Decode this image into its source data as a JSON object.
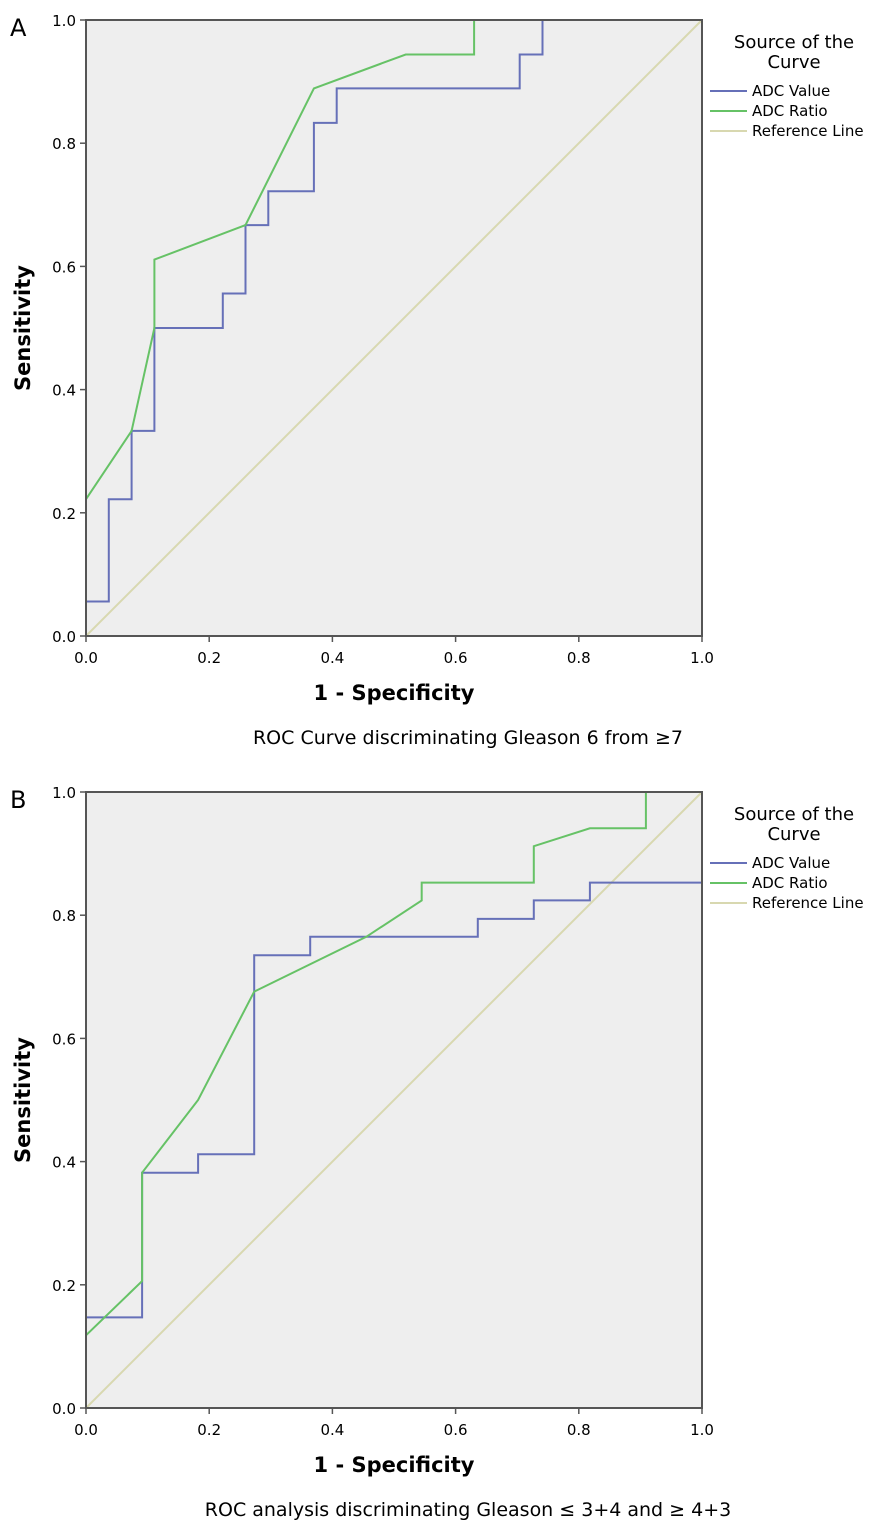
{
  "chart_data": [
    {
      "type": "line",
      "panel_letter": "A",
      "xlabel": "1 - Specificity",
      "ylabel": "Sensitivity",
      "caption": "ROC Curve discriminating Gleason 6 from ≥7",
      "xlim": [
        0,
        1
      ],
      "ylim": [
        0,
        1
      ],
      "x_ticks": [
        "0.0",
        "0.2",
        "0.4",
        "0.6",
        "0.8",
        "1.0"
      ],
      "y_ticks": [
        "0.0",
        "0.2",
        "0.4",
        "0.6",
        "0.8",
        "1.0"
      ],
      "grid": false,
      "legend": {
        "title_line1": "Source of the",
        "title_line2": "Curve",
        "placement": "right"
      },
      "series": [
        {
          "name": "ADC Value",
          "color": "#6670b8",
          "points": [
            [
              0,
              0
            ],
            [
              0,
              0.056
            ],
            [
              0.037,
              0.056
            ],
            [
              0.037,
              0.222
            ],
            [
              0.074,
              0.222
            ],
            [
              0.074,
              0.333
            ],
            [
              0.111,
              0.333
            ],
            [
              0.111,
              0.5
            ],
            [
              0.222,
              0.5
            ],
            [
              0.222,
              0.556
            ],
            [
              0.259,
              0.556
            ],
            [
              0.259,
              0.667
            ],
            [
              0.296,
              0.667
            ],
            [
              0.296,
              0.722
            ],
            [
              0.37,
              0.722
            ],
            [
              0.37,
              0.833
            ],
            [
              0.407,
              0.833
            ],
            [
              0.407,
              0.889
            ],
            [
              0.704,
              0.889
            ],
            [
              0.704,
              0.944
            ],
            [
              0.741,
              0.944
            ],
            [
              0.741,
              1
            ],
            [
              1,
              1
            ]
          ]
        },
        {
          "name": "ADC Ratio",
          "color": "#66c266",
          "points": [
            [
              0,
              0
            ],
            [
              0,
              0.222
            ],
            [
              0.074,
              0.333
            ],
            [
              0.111,
              0.5
            ],
            [
              0.111,
              0.611
            ],
            [
              0.259,
              0.667
            ],
            [
              0.37,
              0.889
            ],
            [
              0.519,
              0.944
            ],
            [
              0.63,
              0.944
            ],
            [
              0.63,
              1
            ],
            [
              1,
              1
            ]
          ]
        },
        {
          "name": "Reference Line",
          "color": "#d8d8b0",
          "points": [
            [
              0,
              0
            ],
            [
              1,
              1
            ]
          ]
        }
      ]
    },
    {
      "type": "line",
      "panel_letter": "B",
      "xlabel": "1 - Specificity",
      "ylabel": "Sensitivity",
      "caption": "ROC analysis discriminating Gleason ≤ 3+4 and ≥ 4+3",
      "xlim": [
        0,
        1
      ],
      "ylim": [
        0,
        1
      ],
      "x_ticks": [
        "0.0",
        "0.2",
        "0.4",
        "0.6",
        "0.8",
        "1.0"
      ],
      "y_ticks": [
        "0.0",
        "0.2",
        "0.4",
        "0.6",
        "0.8",
        "1.0"
      ],
      "grid": false,
      "legend": {
        "title_line1": "Source of the",
        "title_line2": "Curve",
        "placement": "right"
      },
      "series": [
        {
          "name": "ADC Value",
          "color": "#6670b8",
          "points": [
            [
              0,
              0
            ],
            [
              0,
              0.147
            ],
            [
              0.091,
              0.147
            ],
            [
              0.091,
              0.382
            ],
            [
              0.182,
              0.382
            ],
            [
              0.182,
              0.412
            ],
            [
              0.273,
              0.412
            ],
            [
              0.273,
              0.735
            ],
            [
              0.364,
              0.735
            ],
            [
              0.364,
              0.765
            ],
            [
              0.636,
              0.765
            ],
            [
              0.636,
              0.794
            ],
            [
              0.727,
              0.794
            ],
            [
              0.727,
              0.824
            ],
            [
              0.818,
              0.824
            ],
            [
              0.818,
              0.853
            ],
            [
              1,
              0.853
            ],
            [
              1,
              1
            ]
          ]
        },
        {
          "name": "ADC Ratio",
          "color": "#66c266",
          "points": [
            [
              0,
              0
            ],
            [
              0,
              0.118
            ],
            [
              0.091,
              0.206
            ],
            [
              0.091,
              0.382
            ],
            [
              0.182,
              0.5
            ],
            [
              0.273,
              0.676
            ],
            [
              0.455,
              0.765
            ],
            [
              0.545,
              0.824
            ],
            [
              0.545,
              0.853
            ],
            [
              0.727,
              0.853
            ],
            [
              0.727,
              0.912
            ],
            [
              0.818,
              0.941
            ],
            [
              0.909,
              0.941
            ],
            [
              0.909,
              1
            ],
            [
              1,
              1
            ]
          ]
        },
        {
          "name": "Reference Line",
          "color": "#d8d8b0",
          "points": [
            [
              0,
              0
            ],
            [
              1,
              1
            ]
          ]
        }
      ]
    }
  ]
}
